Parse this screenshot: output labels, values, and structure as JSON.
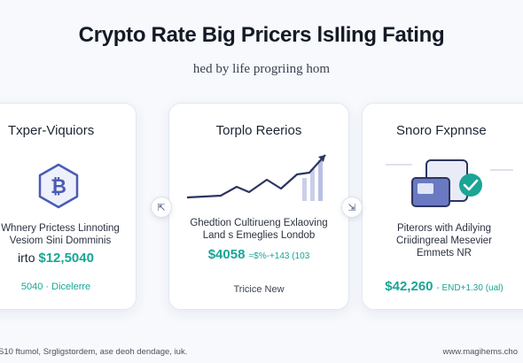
{
  "header": {
    "title": "Crypto Rate Big Pricers lsIling Fating",
    "subtitle": "hed by life progriing hom"
  },
  "cards": [
    {
      "title": "Txper-Viquiors",
      "icon": "bitcoin-shield-icon",
      "description_lines": [
        "Whnery Prictess Linnoting",
        "Vesiom Sini Domminis"
      ],
      "price_prefix": "irto",
      "price": "$12,5040",
      "footer_value": "5040",
      "footer_label": "Dicelerre"
    },
    {
      "title": "Torplo Reerios",
      "icon": "trend-chart-icon",
      "description_lines": [
        "Ghedtion Cultirueng Exlaoving",
        "Land s Emeglies Londob"
      ],
      "price": "$4058",
      "price_small": "=$%-+143 (103",
      "footer": "Tricice New"
    },
    {
      "title": "Snoro Fxpnnse",
      "icon": "wallet-check-icon",
      "description_lines": [
        "Piterors with Adilying",
        "Criidingreal Mesevier",
        "Emmets NR"
      ],
      "price": "$42,260",
      "price_small": "- END+1.30 (ual)"
    }
  ],
  "nav": {
    "prev_icon": "⇱",
    "next_icon": "⇲"
  },
  "footer": {
    "left": "S10 ftumol, Srgligstordem, ase deoh dendage, iuk.",
    "right": "www.magihems.cho"
  },
  "colors": {
    "accent": "#1aa596",
    "icon_purple": "#4a5bb5",
    "background": "#f7f9fc"
  }
}
